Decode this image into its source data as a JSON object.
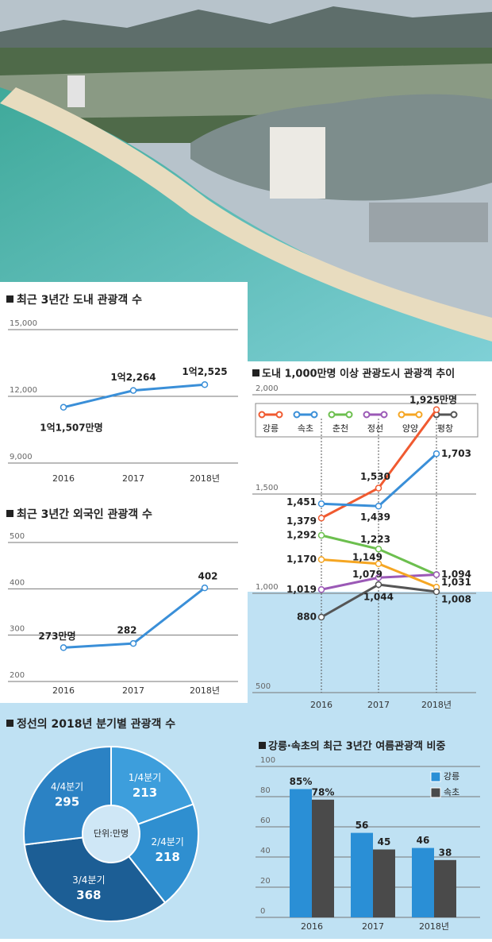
{
  "chart_data": [
    {
      "type": "line",
      "title": "최근 3년간 도내 관광객 수",
      "categories": [
        "2016",
        "2017",
        "2018년"
      ],
      "values": [
        11507,
        12264,
        12525
      ],
      "value_labels": [
        "1억1,507만명",
        "1억2,264",
        "1억2,525"
      ],
      "color": "#3a8fd8",
      "ylim": [
        9000,
        15000
      ],
      "yticks": [
        {
          "value": 9000,
          "label": "9,000"
        },
        {
          "value": 12000,
          "label": "12,000"
        },
        {
          "value": 15000,
          "label": "15,000"
        }
      ],
      "grid": true
    },
    {
      "type": "line",
      "title": "최근 3년간 외국인 관광객 수",
      "categories": [
        "2016",
        "2017",
        "2018년"
      ],
      "values": [
        273,
        282,
        402
      ],
      "value_labels": [
        "273만명",
        "282",
        "402"
      ],
      "color": "#3a8fd8",
      "ylim": [
        200,
        500
      ],
      "yticks": [
        200,
        300,
        400,
        500
      ],
      "grid": true
    },
    {
      "type": "line",
      "title": "도내 1,000만명 이상 관광도시 관광객 추이",
      "categories": [
        "2016",
        "2017",
        "2018년"
      ],
      "series": [
        {
          "name": "강릉",
          "color": "#f05a30",
          "values": [
            1379,
            1530,
            1925
          ],
          "value_labels": [
            "1,379",
            "1,530",
            "1,925만명"
          ]
        },
        {
          "name": "속초",
          "color": "#3a8fd8",
          "values": [
            1451,
            1439,
            1703
          ],
          "value_labels": [
            "1,451",
            "1,439",
            "1,703"
          ]
        },
        {
          "name": "춘천",
          "color": "#6cbf4e",
          "values": [
            1292,
            1223,
            1094
          ],
          "value_labels": [
            "1,292",
            "1,223",
            "1,094"
          ]
        },
        {
          "name": "정선",
          "color": "#9b59b6",
          "values": [
            1019,
            1079,
            1094
          ],
          "value_labels": [
            "1,019",
            "1,079",
            null
          ]
        },
        {
          "name": "양양",
          "color": "#f5a623",
          "values": [
            1170,
            1149,
            1031
          ],
          "value_labels": [
            "1,170",
            "1,149",
            "1,031"
          ]
        },
        {
          "name": "평창",
          "color": "#555555",
          "values": [
            880,
            1044,
            1008
          ],
          "value_labels": [
            "880",
            "1,044",
            "1,008"
          ]
        }
      ],
      "ylim": [
        500,
        2000
      ],
      "yticks": [
        500,
        {
          "value": 1000,
          "label": "1,000"
        },
        {
          "value": 1500,
          "label": "1,500"
        },
        {
          "value": 2000,
          "label": "2,000"
        }
      ],
      "grid": true
    },
    {
      "type": "pie",
      "title": "정선의 2018년 분기별 관광객 수",
      "unit": "단위:만명",
      "categories": [
        "1/4분기",
        "2/4분기",
        "3/4분기",
        "4/4분기"
      ],
      "values": [
        213,
        218,
        368,
        295
      ],
      "colors": [
        "#3d9edc",
        "#2f8fd0",
        "#1c5e95",
        "#2b82c4"
      ]
    },
    {
      "type": "bar",
      "title": "강릉·속초의 최근 3년간 여름관광객 비중",
      "categories": [
        "2016",
        "2017",
        "2018년"
      ],
      "series": [
        {
          "name": "강릉",
          "color": "#2a8fd6",
          "values": [
            85,
            56,
            46
          ],
          "value_labels": [
            "85%",
            "56",
            "46"
          ]
        },
        {
          "name": "속초",
          "color": "#4a4a4a",
          "values": [
            78,
            45,
            38
          ],
          "value_labels": [
            "78%",
            "45",
            "38"
          ]
        }
      ],
      "ylim": [
        0,
        100
      ],
      "yticks": [
        0,
        20,
        40,
        60,
        80,
        100
      ],
      "grid": true
    }
  ]
}
